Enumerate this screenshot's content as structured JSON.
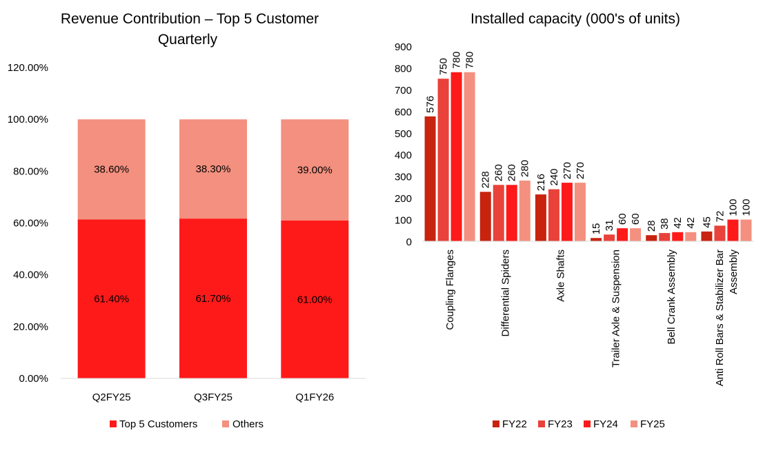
{
  "chart_data": [
    {
      "type": "bar",
      "stacked": true,
      "title_lines": [
        "Revenue Contribution – Top 5  Customer",
        "Quarterly"
      ],
      "categories": [
        "Q2FY25",
        "Q3FY25",
        "Q1FY26"
      ],
      "series": [
        {
          "name": "Top 5 Customers",
          "color": "#FF1A1A",
          "values": [
            61.4,
            61.7,
            61.0
          ],
          "labels": [
            "61.40%",
            "61.70%",
            "61.00%"
          ]
        },
        {
          "name": "Others",
          "color": "#F4907F",
          "values": [
            38.6,
            38.3,
            39.0
          ],
          "labels": [
            "38.60%",
            "38.30%",
            "39.00%"
          ]
        }
      ],
      "ylim": [
        0,
        120
      ],
      "yticks": [
        0,
        20,
        40,
        60,
        80,
        100,
        120
      ],
      "ytick_labels": [
        "0.00%",
        "20.00%",
        "40.00%",
        "60.00%",
        "80.00%",
        "100.00%",
        "120.00%"
      ],
      "legend_position": "bottom"
    },
    {
      "type": "bar",
      "title": "Installed capacity (000's of units)",
      "categories": [
        "Coupling Flanges",
        "Differential Spiders",
        "Axle Shafts",
        "Trailer Axle & Suspension",
        "Bell Crank Assembly",
        "Anti Roll Bars & Stabilizer Bar Assembly"
      ],
      "category_lines": [
        [
          "Coupling Flanges"
        ],
        [
          "Differential Spiders"
        ],
        [
          "Axle Shafts"
        ],
        [
          "Trailer Axle & Suspension"
        ],
        [
          "Bell Crank Assembly"
        ],
        [
          "Anti Roll Bars & Stabilizer Bar",
          "Assembly"
        ]
      ],
      "series": [
        {
          "name": "FY22",
          "color": "#C8230F",
          "values": [
            576,
            228,
            216,
            15,
            28,
            45
          ]
        },
        {
          "name": "FY23",
          "color": "#E8423A",
          "values": [
            750,
            260,
            240,
            31,
            38,
            72
          ]
        },
        {
          "name": "FY24",
          "color": "#FF1A1A",
          "values": [
            780,
            260,
            270,
            60,
            42,
            100
          ]
        },
        {
          "name": "FY25",
          "color": "#F4907F",
          "values": [
            780,
            280,
            270,
            60,
            42,
            100
          ]
        }
      ],
      "ylim": [
        0,
        900
      ],
      "yticks": [
        0,
        100,
        200,
        300,
        400,
        500,
        600,
        700,
        800,
        900
      ],
      "legend_position": "bottom"
    }
  ]
}
